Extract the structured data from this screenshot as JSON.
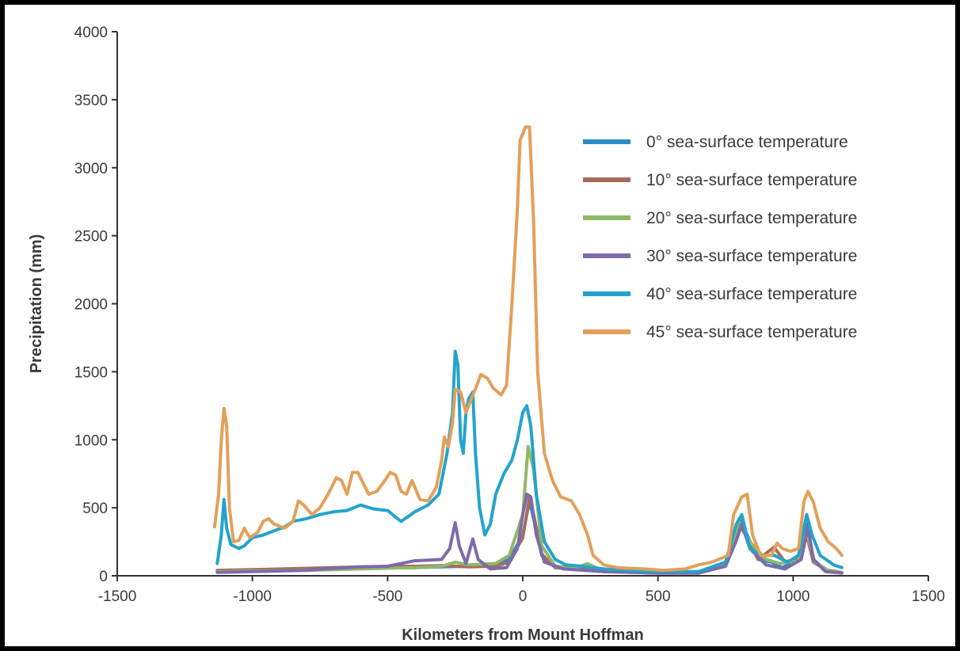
{
  "chart_data": {
    "type": "line",
    "xlabel": "Kilometers from Mount Hoffman",
    "ylabel": "Precipitation (mm)",
    "xlim": [
      -1500,
      1500
    ],
    "ylim": [
      0,
      4000
    ],
    "xticks": [
      -1500,
      -1000,
      -500,
      0,
      500,
      1000,
      1500
    ],
    "yticks": [
      0,
      500,
      1000,
      1500,
      2000,
      2500,
      3000,
      3500,
      4000
    ],
    "grid": false,
    "legend_position": "top-right",
    "series": [
      {
        "name": "0° sea-surface temperature",
        "color": "#2b8cc4",
        "points": [
          [
            -1130,
            30
          ],
          [
            -1000,
            35
          ],
          [
            -800,
            45
          ],
          [
            -600,
            55
          ],
          [
            -400,
            60
          ],
          [
            -300,
            65
          ],
          [
            -200,
            70
          ],
          [
            -100,
            80
          ],
          [
            -50,
            120
          ],
          [
            0,
            300
          ],
          [
            25,
            550
          ],
          [
            40,
            420
          ],
          [
            70,
            150
          ],
          [
            120,
            60
          ],
          [
            200,
            45
          ],
          [
            300,
            30
          ],
          [
            500,
            20
          ],
          [
            650,
            20
          ],
          [
            750,
            80
          ],
          [
            800,
            420
          ],
          [
            830,
            300
          ],
          [
            870,
            120
          ],
          [
            920,
            100
          ],
          [
            960,
            60
          ],
          [
            1020,
            120
          ],
          [
            1050,
            380
          ],
          [
            1075,
            120
          ],
          [
            1120,
            40
          ],
          [
            1180,
            20
          ]
        ]
      },
      {
        "name": "10° sea-surface temperature",
        "color": "#a86b5c",
        "points": [
          [
            -1130,
            40
          ],
          [
            -1000,
            45
          ],
          [
            -800,
            55
          ],
          [
            -600,
            65
          ],
          [
            -400,
            70
          ],
          [
            -300,
            75
          ],
          [
            -200,
            65
          ],
          [
            -100,
            70
          ],
          [
            -50,
            100
          ],
          [
            0,
            280
          ],
          [
            25,
            580
          ],
          [
            40,
            450
          ],
          [
            70,
            160
          ],
          [
            120,
            60
          ],
          [
            200,
            50
          ],
          [
            300,
            35
          ],
          [
            500,
            25
          ],
          [
            650,
            25
          ],
          [
            750,
            80
          ],
          [
            800,
            380
          ],
          [
            830,
            280
          ],
          [
            870,
            120
          ],
          [
            930,
            210
          ],
          [
            970,
            100
          ],
          [
            1020,
            130
          ],
          [
            1050,
            300
          ],
          [
            1075,
            100
          ],
          [
            1120,
            45
          ],
          [
            1180,
            25
          ]
        ]
      },
      {
        "name": "20° sea-surface temperature",
        "color": "#8fb86a",
        "points": [
          [
            -1130,
            30
          ],
          [
            -1000,
            35
          ],
          [
            -800,
            40
          ],
          [
            -600,
            50
          ],
          [
            -400,
            60
          ],
          [
            -300,
            70
          ],
          [
            -250,
            100
          ],
          [
            -200,
            80
          ],
          [
            -100,
            90
          ],
          [
            -50,
            150
          ],
          [
            0,
            450
          ],
          [
            20,
            950
          ],
          [
            40,
            780
          ],
          [
            70,
            220
          ],
          [
            120,
            70
          ],
          [
            200,
            60
          ],
          [
            240,
            90
          ],
          [
            280,
            50
          ],
          [
            400,
            30
          ],
          [
            550,
            25
          ],
          [
            650,
            30
          ],
          [
            750,
            90
          ],
          [
            800,
            400
          ],
          [
            840,
            250
          ],
          [
            900,
            120
          ],
          [
            950,
            90
          ],
          [
            1020,
            110
          ],
          [
            1050,
            320
          ],
          [
            1080,
            100
          ],
          [
            1130,
            40
          ],
          [
            1180,
            25
          ]
        ]
      },
      {
        "name": "30° sea-surface temperature",
        "color": "#7e6aab",
        "points": [
          [
            -1130,
            25
          ],
          [
            -1000,
            30
          ],
          [
            -800,
            40
          ],
          [
            -700,
            55
          ],
          [
            -600,
            65
          ],
          [
            -500,
            70
          ],
          [
            -400,
            110
          ],
          [
            -300,
            120
          ],
          [
            -270,
            200
          ],
          [
            -250,
            390
          ],
          [
            -235,
            220
          ],
          [
            -210,
            90
          ],
          [
            -185,
            270
          ],
          [
            -165,
            120
          ],
          [
            -120,
            50
          ],
          [
            -60,
            60
          ],
          [
            -20,
            200
          ],
          [
            0,
            450
          ],
          [
            15,
            600
          ],
          [
            30,
            580
          ],
          [
            50,
            300
          ],
          [
            80,
            100
          ],
          [
            150,
            50
          ],
          [
            300,
            30
          ],
          [
            500,
            20
          ],
          [
            650,
            20
          ],
          [
            750,
            70
          ],
          [
            790,
            260
          ],
          [
            810,
            380
          ],
          [
            840,
            200
          ],
          [
            900,
            80
          ],
          [
            970,
            50
          ],
          [
            1030,
            120
          ],
          [
            1055,
            360
          ],
          [
            1075,
            120
          ],
          [
            1120,
            30
          ],
          [
            1180,
            20
          ]
        ]
      },
      {
        "name": "40° sea-surface temperature",
        "color": "#23a3cc",
        "points": [
          [
            -1130,
            90
          ],
          [
            -1115,
            300
          ],
          [
            -1105,
            560
          ],
          [
            -1095,
            350
          ],
          [
            -1080,
            230
          ],
          [
            -1050,
            200
          ],
          [
            -1030,
            220
          ],
          [
            -1000,
            280
          ],
          [
            -960,
            300
          ],
          [
            -920,
            330
          ],
          [
            -880,
            360
          ],
          [
            -850,
            400
          ],
          [
            -800,
            420
          ],
          [
            -750,
            450
          ],
          [
            -700,
            470
          ],
          [
            -650,
            480
          ],
          [
            -600,
            520
          ],
          [
            -550,
            490
          ],
          [
            -500,
            480
          ],
          [
            -470,
            430
          ],
          [
            -450,
            400
          ],
          [
            -420,
            440
          ],
          [
            -400,
            470
          ],
          [
            -350,
            520
          ],
          [
            -310,
            600
          ],
          [
            -280,
            900
          ],
          [
            -260,
            1200
          ],
          [
            -250,
            1650
          ],
          [
            -240,
            1550
          ],
          [
            -230,
            1000
          ],
          [
            -220,
            900
          ],
          [
            -210,
            1200
          ],
          [
            -200,
            1300
          ],
          [
            -185,
            1350
          ],
          [
            -175,
            900
          ],
          [
            -160,
            500
          ],
          [
            -140,
            300
          ],
          [
            -120,
            380
          ],
          [
            -100,
            600
          ],
          [
            -70,
            750
          ],
          [
            -40,
            850
          ],
          [
            -20,
            1000
          ],
          [
            0,
            1200
          ],
          [
            15,
            1250
          ],
          [
            30,
            1100
          ],
          [
            50,
            600
          ],
          [
            80,
            250
          ],
          [
            120,
            120
          ],
          [
            160,
            80
          ],
          [
            220,
            70
          ],
          [
            300,
            50
          ],
          [
            450,
            30
          ],
          [
            550,
            30
          ],
          [
            650,
            30
          ],
          [
            750,
            100
          ],
          [
            790,
            380
          ],
          [
            810,
            450
          ],
          [
            840,
            200
          ],
          [
            880,
            150
          ],
          [
            930,
            150
          ],
          [
            980,
            100
          ],
          [
            1020,
            150
          ],
          [
            1050,
            450
          ],
          [
            1070,
            300
          ],
          [
            1100,
            150
          ],
          [
            1150,
            80
          ],
          [
            1180,
            60
          ]
        ]
      },
      {
        "name": "45° sea-surface temperature",
        "color": "#e2a05a",
        "points": [
          [
            -1140,
            360
          ],
          [
            -1125,
            600
          ],
          [
            -1115,
            1000
          ],
          [
            -1105,
            1230
          ],
          [
            -1095,
            1100
          ],
          [
            -1085,
            500
          ],
          [
            -1070,
            250
          ],
          [
            -1050,
            260
          ],
          [
            -1030,
            350
          ],
          [
            -1010,
            280
          ],
          [
            -980,
            320
          ],
          [
            -960,
            400
          ],
          [
            -940,
            420
          ],
          [
            -920,
            380
          ],
          [
            -880,
            350
          ],
          [
            -850,
            400
          ],
          [
            -830,
            550
          ],
          [
            -810,
            520
          ],
          [
            -780,
            450
          ],
          [
            -750,
            500
          ],
          [
            -720,
            600
          ],
          [
            -690,
            720
          ],
          [
            -670,
            700
          ],
          [
            -650,
            600
          ],
          [
            -630,
            760
          ],
          [
            -610,
            760
          ],
          [
            -590,
            680
          ],
          [
            -570,
            600
          ],
          [
            -540,
            620
          ],
          [
            -510,
            700
          ],
          [
            -490,
            760
          ],
          [
            -470,
            740
          ],
          [
            -450,
            620
          ],
          [
            -430,
            600
          ],
          [
            -410,
            700
          ],
          [
            -380,
            560
          ],
          [
            -350,
            550
          ],
          [
            -320,
            650
          ],
          [
            -300,
            850
          ],
          [
            -290,
            1020
          ],
          [
            -275,
            950
          ],
          [
            -260,
            1120
          ],
          [
            -250,
            1370
          ],
          [
            -230,
            1350
          ],
          [
            -210,
            1200
          ],
          [
            -190,
            1300
          ],
          [
            -170,
            1400
          ],
          [
            -155,
            1480
          ],
          [
            -130,
            1450
          ],
          [
            -110,
            1380
          ],
          [
            -80,
            1330
          ],
          [
            -60,
            1400
          ],
          [
            -40,
            2000
          ],
          [
            -20,
            2700
          ],
          [
            -10,
            3200
          ],
          [
            10,
            3300
          ],
          [
            25,
            3300
          ],
          [
            40,
            2600
          ],
          [
            55,
            1500
          ],
          [
            80,
            900
          ],
          [
            110,
            700
          ],
          [
            140,
            580
          ],
          [
            180,
            550
          ],
          [
            210,
            450
          ],
          [
            240,
            300
          ],
          [
            260,
            150
          ],
          [
            300,
            80
          ],
          [
            350,
            60
          ],
          [
            450,
            50
          ],
          [
            520,
            40
          ],
          [
            600,
            50
          ],
          [
            650,
            80
          ],
          [
            700,
            100
          ],
          [
            760,
            150
          ],
          [
            780,
            450
          ],
          [
            810,
            580
          ],
          [
            830,
            600
          ],
          [
            850,
            300
          ],
          [
            880,
            150
          ],
          [
            920,
            150
          ],
          [
            940,
            240
          ],
          [
            960,
            200
          ],
          [
            990,
            180
          ],
          [
            1020,
            200
          ],
          [
            1040,
            550
          ],
          [
            1055,
            620
          ],
          [
            1075,
            540
          ],
          [
            1100,
            350
          ],
          [
            1130,
            250
          ],
          [
            1160,
            200
          ],
          [
            1180,
            150
          ]
        ]
      }
    ]
  }
}
